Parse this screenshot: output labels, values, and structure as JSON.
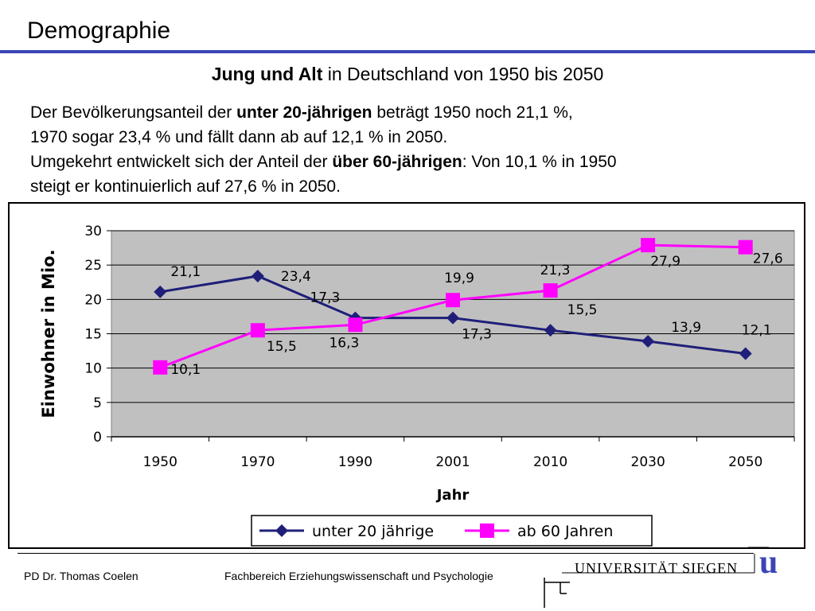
{
  "slide": {
    "title": "Demographie",
    "subtitle_bold": "Jung und Alt",
    "subtitle_rest": " in Deutschland von 1950 bis 2050",
    "line1_a": "Der Bevölkerungsanteil der ",
    "line1_b": "unter 20-jährigen",
    "line1_c": " beträgt 1950 noch 21,1 %,",
    "line2": "1970 sogar 23,4 % und fällt dann ab auf 12,1 % in 2050.",
    "line3_a": "Umgekehrt entwickelt sich der Anteil der ",
    "line3_b": "über 60-jährigen",
    "line3_c": ": Von 10,1 % in 1950",
    "line4": "steigt er kontinuierlich auf 27,6 % in 2050."
  },
  "footer": {
    "author": "PD Dr. Thomas Coelen",
    "department": "Fachbereich Erziehungswissenschaft und Psychologie",
    "university": "UNIVERSITÄT  SIEGEN",
    "logo_letter": "u"
  },
  "colors": {
    "series_under20": "#1f1f7a",
    "series_over60": "#ff00ff",
    "plot_bg": "#c0c0c0",
    "title_rule": "#3a45b5"
  },
  "chart_data": {
    "type": "line",
    "categories": [
      "1950",
      "1970",
      "1990",
      "2001",
      "2010",
      "2030",
      "2050"
    ],
    "xlabel": "Jahr",
    "ylabel": "Einwohner in Mio.",
    "ylim": [
      0,
      30
    ],
    "yticks": [
      "0",
      "5",
      "10",
      "15",
      "20",
      "25",
      "30"
    ],
    "grid": true,
    "legend_position": "bottom",
    "series": [
      {
        "name": "unter 20 jährige",
        "marker": "diamond",
        "values": [
          21.1,
          23.4,
          17.3,
          17.3,
          15.5,
          13.9,
          12.1
        ],
        "labels": [
          "21,1",
          "23,4",
          "17,3",
          "17,3",
          "15,5",
          "13,9",
          "12,1"
        ]
      },
      {
        "name": "ab 60 Jahren",
        "marker": "square",
        "values": [
          10.1,
          15.5,
          16.3,
          19.9,
          21.3,
          27.9,
          27.6
        ],
        "labels": [
          "10,1",
          "15,5",
          "16,3",
          "19,9",
          "21,3",
          "27,9",
          "27,6"
        ]
      }
    ]
  }
}
